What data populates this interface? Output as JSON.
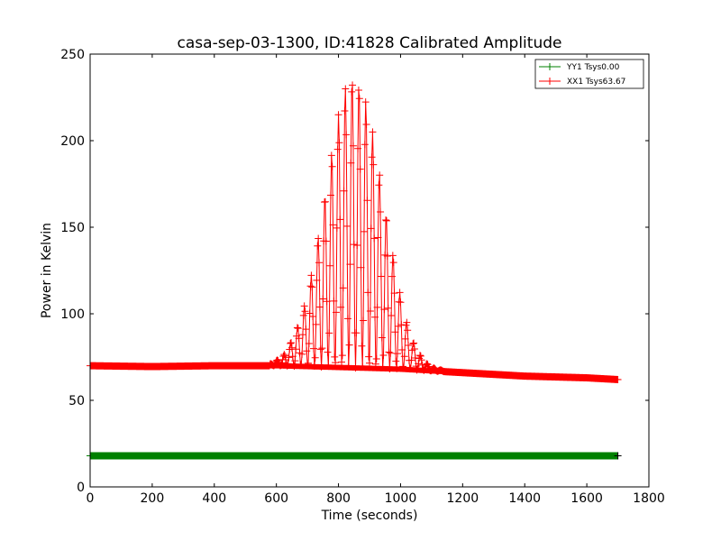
{
  "chart_data": {
    "type": "line",
    "title": "casa-sep-03-1300, ID:41828 Calibrated Amplitude",
    "xlabel": "Time (seconds)",
    "ylabel": "Power in Kelvin",
    "xlim": [
      0,
      1800
    ],
    "ylim": [
      0,
      250
    ],
    "xticks": [
      0,
      200,
      400,
      600,
      800,
      1000,
      1200,
      1400,
      1600,
      1800
    ],
    "yticks": [
      0,
      50,
      100,
      150,
      200,
      250
    ],
    "grid": false,
    "legend_position": "top-right",
    "series": [
      {
        "name": "YY1 Tsys0.00",
        "color": "#008000",
        "marker": "plus",
        "x": [
          0,
          100,
          200,
          300,
          400,
          500,
          600,
          700,
          800,
          900,
          1000,
          1100,
          1200,
          1300,
          1400,
          1500,
          1600,
          1700
        ],
        "y": [
          18,
          18,
          18,
          18,
          18,
          18,
          18,
          18,
          18,
          18,
          18,
          18,
          18,
          18,
          18,
          18,
          18,
          18
        ]
      },
      {
        "name": "XX1 Tsys63.67",
        "color": "#ff0000",
        "marker": "plus",
        "baseline": {
          "x": [
            0,
            200,
            400,
            600,
            800,
            1000,
            1100,
            1200,
            1400,
            1600,
            1700
          ],
          "y": [
            70,
            69.5,
            70,
            70,
            69,
            68,
            67,
            66,
            64,
            63,
            62
          ]
        },
        "peak": {
          "x": [
            580,
            620,
            660,
            700,
            720,
            740,
            760,
            780,
            800,
            820,
            840,
            860,
            880,
            900,
            920,
            940,
            960,
            980,
            1000,
            1020,
            1040,
            1060,
            1080,
            1100,
            1140
          ],
          "y": [
            71,
            75,
            88,
            110,
            130,
            150,
            172,
            195,
            215,
            230,
            236,
            234,
            228,
            215,
            195,
            172,
            150,
            130,
            110,
            95,
            84,
            77,
            72,
            69,
            67
          ]
        }
      }
    ]
  }
}
